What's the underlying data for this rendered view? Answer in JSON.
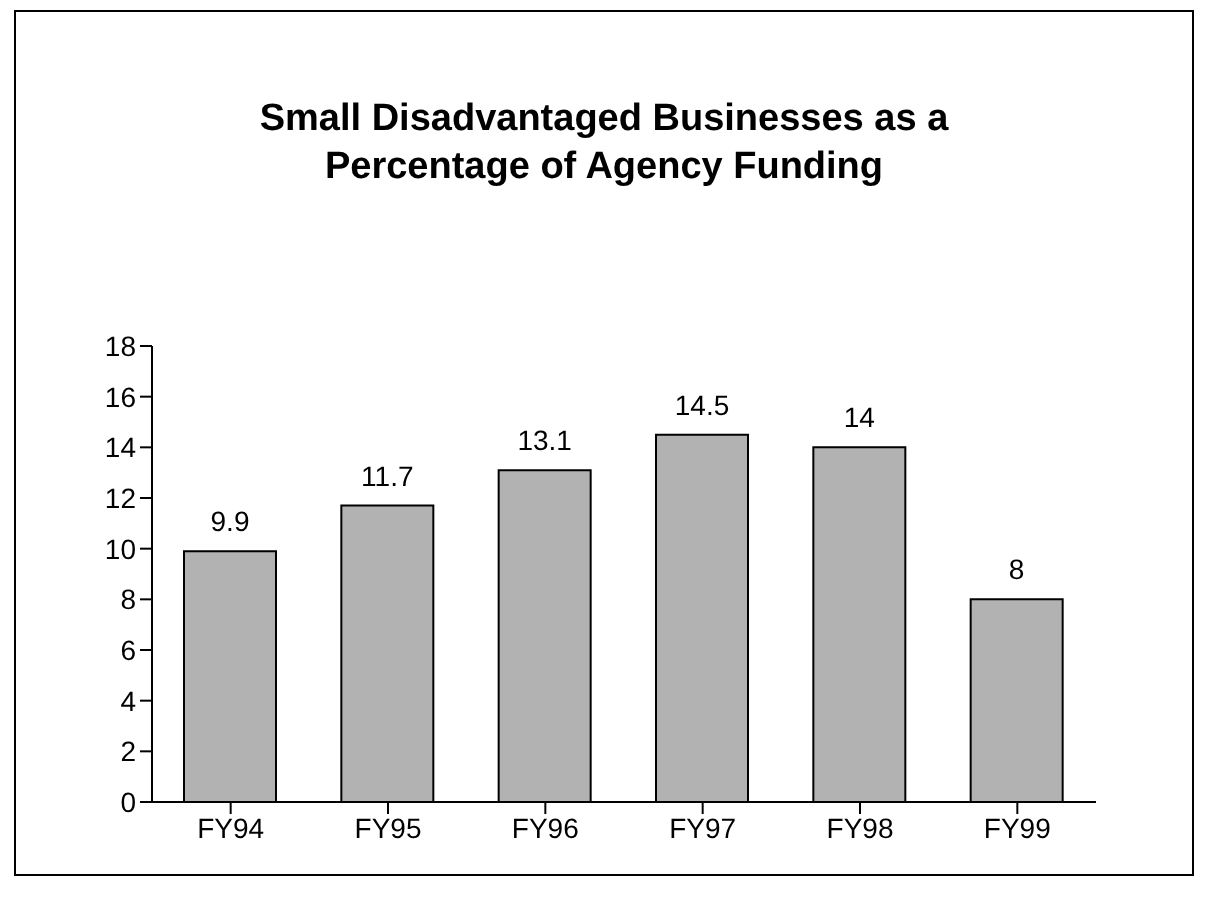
{
  "chart_data": {
    "type": "bar",
    "title": "Small Disadvantaged Businesses as a Percentage of Agency Funding",
    "categories": [
      "FY94",
      "FY95",
      "FY96",
      "FY97",
      "FY98",
      "FY99"
    ],
    "values": [
      9.9,
      11.7,
      13.1,
      14.5,
      14,
      8
    ],
    "color": "#b2b2b2",
    "ylim": [
      0,
      18
    ],
    "yticks": [
      0,
      2,
      4,
      6,
      8,
      10,
      12,
      14,
      16,
      18
    ],
    "data_labels": true,
    "grid": false
  }
}
